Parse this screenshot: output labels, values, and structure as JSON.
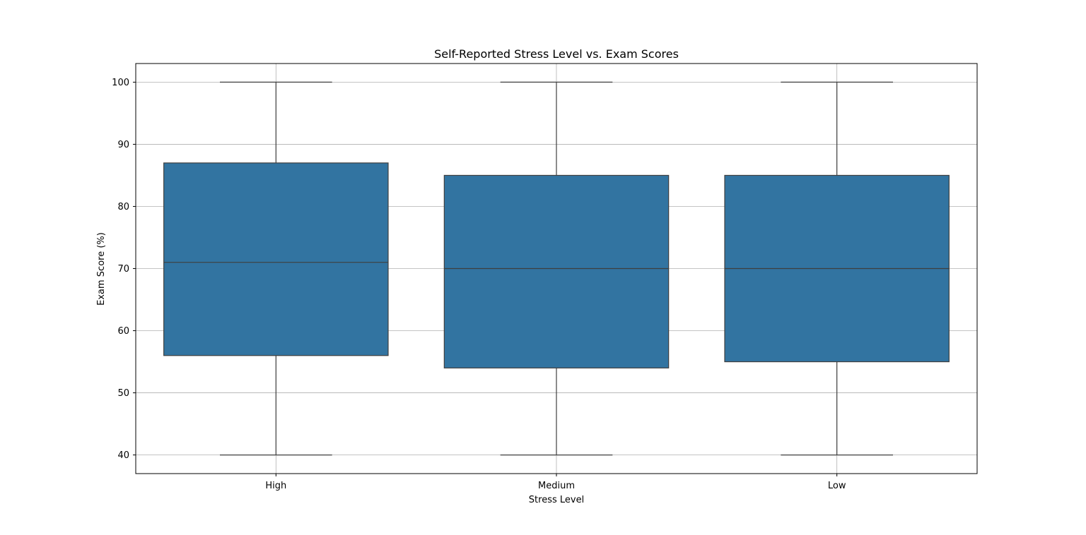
{
  "chart_data": {
    "type": "box",
    "title": "Self-Reported Stress Level vs. Exam Scores",
    "xlabel": "Stress Level",
    "ylabel": "Exam Score (%)",
    "categories": [
      "High",
      "Medium",
      "Low"
    ],
    "ylim": [
      37,
      103
    ],
    "yticks": [
      40,
      50,
      60,
      70,
      80,
      90,
      100
    ],
    "grid": true,
    "boxes": [
      {
        "category": "High",
        "whisker_low": 40,
        "q1": 56,
        "median": 71,
        "q3": 87,
        "whisker_high": 100
      },
      {
        "category": "Medium",
        "whisker_low": 40,
        "q1": 54,
        "median": 70,
        "q3": 85,
        "whisker_high": 100
      },
      {
        "category": "Low",
        "whisker_low": 40,
        "q1": 55,
        "median": 70,
        "q3": 85,
        "whisker_high": 100
      }
    ],
    "colors": {
      "box_fill": "#3274a1",
      "box_edge": "#3f3f3f",
      "grid": "#b0b0b0",
      "axes": "#000000"
    }
  }
}
